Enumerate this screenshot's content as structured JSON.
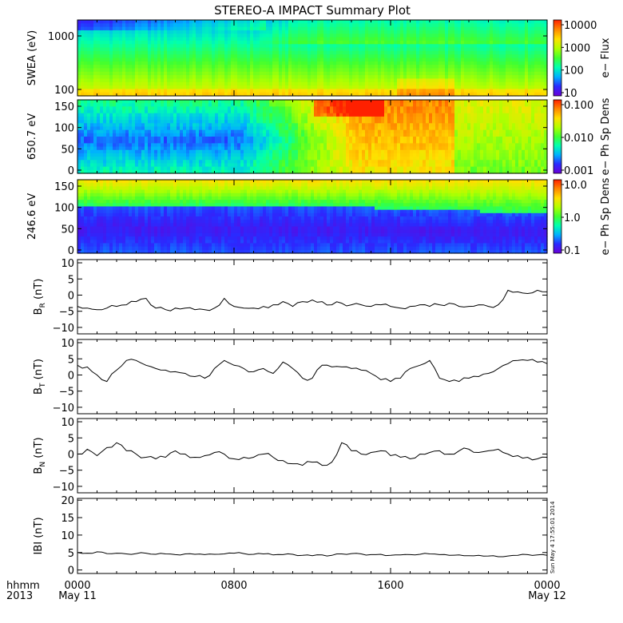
{
  "title": "STEREO-A IMPACT Summary Plot",
  "stamp": "Sun May  4 17:55:01 2014",
  "time_axis": {
    "row1_label": "hhmm",
    "row2_label": "2013",
    "ticks": [
      {
        "t": 0,
        "top": "0000",
        "bottom": "May 11"
      },
      {
        "t": 8,
        "top": "0800",
        "bottom": ""
      },
      {
        "t": 16,
        "top": "1600",
        "bottom": ""
      },
      {
        "t": 24,
        "top": "0000",
        "bottom": "May 12"
      }
    ],
    "range_hours": [
      0,
      24
    ]
  },
  "colors": {
    "line": "#000000",
    "colormap": [
      "#6a00d8",
      "#2a2aff",
      "#00b0ff",
      "#00ffb0",
      "#40ff30",
      "#b0ff00",
      "#ffe000",
      "#ff8800",
      "#ff2000"
    ]
  },
  "spectrograms": [
    {
      "id": "swea",
      "ylabel": "SWEA (eV)",
      "cbar_label": "e− Flux",
      "yticks": [
        "1000",
        "100"
      ],
      "cbar_ticks": [
        "10000",
        "1000",
        "100",
        "10"
      ],
      "log_y": true
    },
    {
      "id": "pad650",
      "ylabel": "650.7 eV",
      "cbar_label": "e− Ph Sp Dens",
      "yticks": [
        "150",
        "100",
        "50",
        "0"
      ],
      "cbar_ticks": [
        "0.100",
        "0.010",
        "0.001"
      ],
      "ylim": [
        0,
        180
      ]
    },
    {
      "id": "pad246",
      "ylabel": "246.6 eV",
      "cbar_label": "e− Ph Sp Dens",
      "yticks": [
        "150",
        "100",
        "50",
        "0"
      ],
      "cbar_ticks": [
        "10.0",
        "1.0",
        "0.1"
      ],
      "ylim": [
        0,
        180
      ]
    }
  ],
  "chart_data": [
    {
      "type": "line",
      "id": "BR",
      "ylabel_main": "B",
      "ylabel_sub": "R",
      "ylabel_unit": " (nT)",
      "ylim": [
        -12,
        11
      ],
      "yticks": [
        "10",
        "5",
        "0",
        "−5",
        "−10"
      ],
      "x": [
        0,
        0.5,
        1,
        1.5,
        2,
        2.5,
        3,
        3.5,
        4,
        4.5,
        5,
        5.5,
        6,
        6.5,
        7,
        7.5,
        8,
        8.5,
        9,
        9.5,
        10,
        10.5,
        11,
        11.5,
        12,
        12.5,
        13,
        13.5,
        14,
        14.5,
        15,
        15.5,
        16,
        16.5,
        17,
        17.5,
        18,
        18.5,
        19,
        19.5,
        20,
        20.5,
        21,
        21.5,
        22,
        22.5,
        23,
        23.5,
        24
      ],
      "values": [
        -3.5,
        -4,
        -4.5,
        -4,
        -3.5,
        -3,
        -2,
        -1,
        -4,
        -4.5,
        -4,
        -4,
        -4.5,
        -4.5,
        -4,
        -1,
        -3.5,
        -4,
        -4,
        -3.5,
        -3,
        -2,
        -3.5,
        -2,
        -1.5,
        -2,
        -3,
        -2.5,
        -3,
        -3,
        -3.5,
        -3,
        -3.5,
        -4,
        -3.5,
        -3,
        -3.5,
        -3,
        -2.5,
        -3.5,
        -3.5,
        -3,
        -3.5,
        -3,
        1.5,
        1,
        0.5,
        1.5,
        1
      ]
    },
    {
      "type": "line",
      "id": "BT",
      "ylabel_main": "B",
      "ylabel_sub": "T",
      "ylabel_unit": " (nT)",
      "ylim": [
        -12,
        11
      ],
      "yticks": [
        "10",
        "5",
        "0",
        "−5",
        "−10"
      ],
      "x": [
        0,
        0.5,
        1,
        1.5,
        2,
        2.5,
        3,
        3.5,
        4,
        4.5,
        5,
        5.5,
        6,
        6.5,
        7,
        7.5,
        8,
        8.5,
        9,
        9.5,
        10,
        10.5,
        11,
        11.5,
        12,
        12.5,
        13,
        13.5,
        14,
        14.5,
        15,
        15.5,
        16,
        16.5,
        17,
        17.5,
        18,
        18.5,
        19,
        19.5,
        20,
        20.5,
        21,
        21.5,
        22,
        22.5,
        23,
        23.5,
        24
      ],
      "values": [
        3,
        2.5,
        0,
        -2,
        1.5,
        4.5,
        4.5,
        3,
        2,
        1.5,
        1,
        0.5,
        -0.5,
        -1,
        2,
        4.5,
        3,
        2,
        1,
        2,
        0.5,
        4,
        2,
        -1,
        -1,
        3,
        2.5,
        2.5,
        2,
        1.5,
        0.5,
        -1.5,
        -2,
        -1,
        2,
        3,
        4.5,
        -1,
        -2,
        -2,
        -1,
        -0.5,
        0.5,
        2,
        3.5,
        4.5,
        4.5,
        4,
        3.5
      ]
    },
    {
      "type": "line",
      "id": "BN",
      "ylabel_main": "B",
      "ylabel_sub": "N",
      "ylabel_unit": " (nT)",
      "ylim": [
        -12,
        11
      ],
      "yticks": [
        "10",
        "5",
        "0",
        "−5",
        "−10"
      ],
      "x": [
        0,
        0.5,
        1,
        1.5,
        2,
        2.5,
        3,
        3.5,
        4,
        4.5,
        5,
        5.5,
        6,
        6.5,
        7,
        7.5,
        8,
        8.5,
        9,
        9.5,
        10,
        10.5,
        11,
        11.5,
        12,
        12.5,
        13,
        13.5,
        14,
        14.5,
        15,
        15.5,
        16,
        16.5,
        17,
        17.5,
        18,
        18.5,
        19,
        19.5,
        20,
        20.5,
        21,
        21.5,
        22,
        22.5,
        23,
        23.5,
        24
      ],
      "values": [
        0,
        1.5,
        -0.5,
        2,
        3.5,
        1,
        0,
        -1,
        -1.5,
        -1,
        1,
        0,
        -1,
        -0.5,
        0.5,
        0,
        -1.5,
        -1,
        -1,
        0,
        -1,
        -2,
        -3,
        -3.5,
        -2.5,
        -3.5,
        -2.5,
        3.5,
        1,
        0,
        0.5,
        1,
        -0.5,
        -1,
        -1.5,
        0,
        0.5,
        1,
        0,
        1,
        1.5,
        0.5,
        1,
        1.5,
        0,
        -0.5,
        -1,
        -1.5,
        -1
      ]
    },
    {
      "type": "line",
      "id": "Bmag",
      "ylabel_main": "IBI",
      "ylabel_sub": "",
      "ylabel_unit": " (nT)",
      "ylim": [
        -1,
        20.5
      ],
      "yticks": [
        "20",
        "15",
        "10",
        "5",
        "0"
      ],
      "x": [
        0,
        0.5,
        1,
        1.5,
        2,
        2.5,
        3,
        3.5,
        4,
        4.5,
        5,
        5.5,
        6,
        6.5,
        7,
        7.5,
        8,
        8.5,
        9,
        9.5,
        10,
        10.5,
        11,
        11.5,
        12,
        12.5,
        13,
        13.5,
        14,
        14.5,
        15,
        15.5,
        16,
        16.5,
        17,
        17.5,
        18,
        18.5,
        19,
        19.5,
        20,
        20.5,
        21,
        21.5,
        22,
        22.5,
        23,
        23.5,
        24
      ],
      "values": [
        5,
        4.8,
        5.2,
        4.7,
        4.8,
        4.6,
        4.7,
        4.8,
        4.5,
        4.6,
        4.4,
        4.6,
        4.5,
        4.4,
        4.5,
        4.6,
        4.8,
        4.7,
        4.5,
        4.6,
        4.3,
        4.4,
        4.5,
        4.2,
        4.1,
        4.3,
        4.2,
        4.6,
        4.7,
        4.6,
        4.4,
        4.5,
        4.2,
        4.3,
        4.4,
        4.5,
        4.6,
        4.4,
        4.2,
        4.3,
        4.1,
        4.2,
        4,
        3.8,
        4,
        4.2,
        4.4,
        4.3,
        4.2
      ]
    }
  ]
}
